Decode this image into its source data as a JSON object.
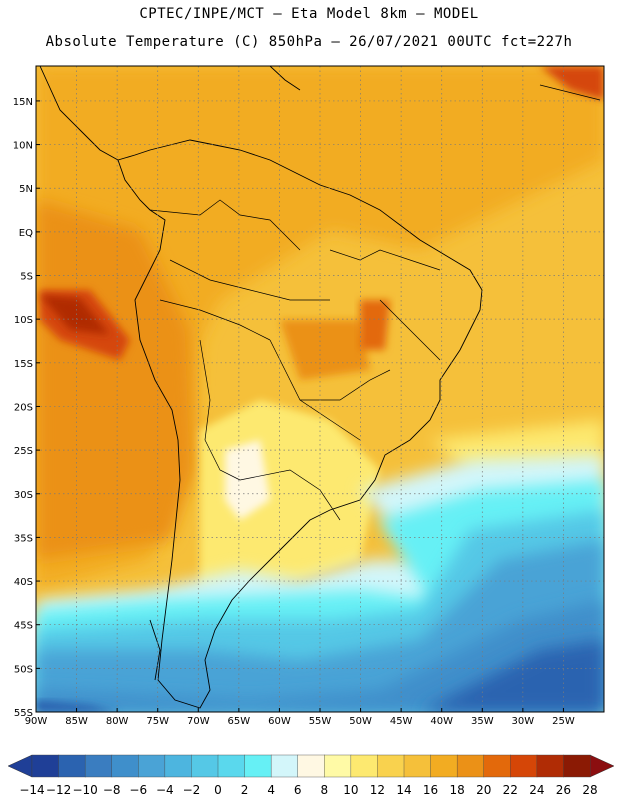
{
  "header": {
    "line1": "CPTEC/INPE/MCT –  Eta Model 8km – MODEL",
    "line2": "Absolute Temperature (C) 850hPa – 26/07/2021 00UTC fct=227h"
  },
  "map": {
    "lon_range": [
      -90,
      -20
    ],
    "lat_range": [
      -55,
      19
    ],
    "lat_ticks": [
      {
        "v": 15,
        "label": "15N"
      },
      {
        "v": 10,
        "label": "10N"
      },
      {
        "v": 5,
        "label": "5N"
      },
      {
        "v": 0,
        "label": "EQ"
      },
      {
        "v": -5,
        "label": "5S"
      },
      {
        "v": -10,
        "label": "10S"
      },
      {
        "v": -15,
        "label": "15S"
      },
      {
        "v": -20,
        "label": "20S"
      },
      {
        "v": -25,
        "label": "25S"
      },
      {
        "v": -30,
        "label": "30S"
      },
      {
        "v": -35,
        "label": "35S"
      },
      {
        "v": -40,
        "label": "40S"
      },
      {
        "v": -45,
        "label": "45S"
      },
      {
        "v": -50,
        "label": "50S"
      },
      {
        "v": -55,
        "label": "55S"
      }
    ],
    "lon_ticks": [
      {
        "v": -90,
        "label": "90W"
      },
      {
        "v": -85,
        "label": "85W"
      },
      {
        "v": -80,
        "label": "80W"
      },
      {
        "v": -75,
        "label": "75W"
      },
      {
        "v": -70,
        "label": "70W"
      },
      {
        "v": -65,
        "label": "65W"
      },
      {
        "v": -60,
        "label": "60W"
      },
      {
        "v": -55,
        "label": "55W"
      },
      {
        "v": -50,
        "label": "50W"
      },
      {
        "v": -45,
        "label": "45W"
      },
      {
        "v": -40,
        "label": "40W"
      },
      {
        "v": -35,
        "label": "35W"
      },
      {
        "v": -30,
        "label": "30W"
      },
      {
        "v": -25,
        "label": "25W"
      }
    ]
  },
  "colorbar": {
    "labels": [
      "−14",
      "−12",
      "−10",
      "−8",
      "−6",
      "−4",
      "−2",
      "0",
      "2",
      "4",
      "6",
      "8",
      "10",
      "12",
      "14",
      "16",
      "18",
      "20",
      "22",
      "24",
      "26",
      "28"
    ],
    "colors": [
      "#1f3f97",
      "#2b63b0",
      "#3a7dc0",
      "#3f8fcb",
      "#4aa3d6",
      "#4db5df",
      "#55c8e6",
      "#5ad8ed",
      "#66f0f5",
      "#d3f6fa",
      "#fff8e3",
      "#fffaa6",
      "#fde970",
      "#f9d24e",
      "#f5c03a",
      "#f2ac22",
      "#eb9117",
      "#e3690b",
      "#d54607",
      "#b02c05",
      "#8b1a04"
    ],
    "low_color": "#1f3f97",
    "high_color": "#8b0e10"
  },
  "icons": {
    "low_arrow": "triangle-left-icon",
    "high_arrow": "triangle-right-icon"
  }
}
